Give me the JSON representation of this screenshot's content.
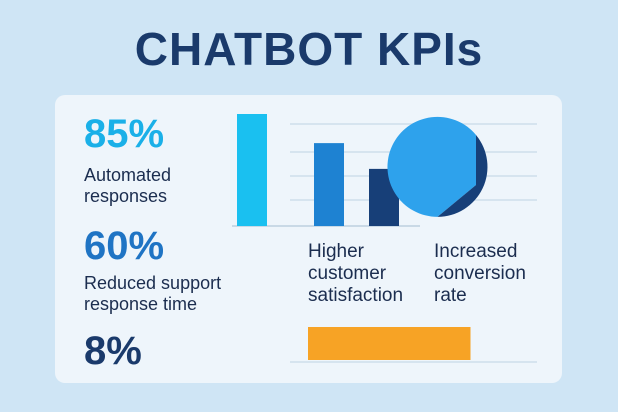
{
  "title": "CHATBOT KPIs",
  "stats": [
    {
      "value": "85%",
      "label_line1": "Automated",
      "label_line2": "responses",
      "color": "#1ab0e8"
    },
    {
      "value": "60%",
      "label_line1": "Reduced support",
      "label_line2": "response time",
      "color": "#1f74c4"
    },
    {
      "value": "8%",
      "color": "#1a3a6b"
    }
  ],
  "captions": {
    "satisfaction": [
      "Higher",
      "customer",
      "satisfaction"
    ],
    "conversion": [
      "Increased",
      "conversion",
      "rate"
    ]
  },
  "chart_data": [
    {
      "type": "bar",
      "values": [
        100,
        74,
        51
      ],
      "colors": [
        "#1ac0f0",
        "#1e82d2",
        "#173f78"
      ],
      "ylim": [
        0,
        100
      ],
      "grid": true
    },
    {
      "type": "pie",
      "values": [
        64,
        36
      ],
      "colors": [
        "#2ea2ec",
        "#173f78"
      ]
    },
    {
      "type": "bar",
      "orientation": "horizontal",
      "values": [
        65
      ],
      "xlim": [
        0,
        100
      ],
      "colors": [
        "#f7a325"
      ]
    }
  ]
}
